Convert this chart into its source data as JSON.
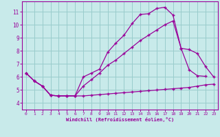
{
  "title": "",
  "xlabel": "Windchill (Refroidissement éolien,°C)",
  "background_color": "#c8eaea",
  "grid_color": "#99cccc",
  "line_color": "#990099",
  "xlim": [
    -0.5,
    23.5
  ],
  "ylim": [
    3.5,
    11.8
  ],
  "xticks": [
    0,
    1,
    2,
    3,
    4,
    5,
    6,
    7,
    8,
    9,
    10,
    11,
    12,
    13,
    14,
    15,
    16,
    17,
    18,
    19,
    20,
    21,
    22,
    23
  ],
  "yticks": [
    4,
    5,
    6,
    7,
    8,
    9,
    10,
    11
  ],
  "line1_x": [
    0,
    1,
    2,
    3,
    4,
    5,
    6,
    7,
    8,
    9,
    10,
    11,
    12,
    13,
    14,
    15,
    16,
    17,
    18,
    19,
    20,
    21,
    22,
    23
  ],
  "line1_y": [
    6.3,
    5.7,
    5.3,
    4.6,
    4.55,
    4.55,
    4.55,
    4.55,
    4.6,
    4.65,
    4.7,
    4.75,
    4.8,
    4.85,
    4.9,
    4.95,
    5.0,
    5.05,
    5.1,
    5.15,
    5.2,
    5.3,
    5.4,
    5.45
  ],
  "line2_x": [
    0,
    1,
    2,
    3,
    4,
    5,
    6,
    7,
    8,
    9,
    10,
    11,
    12,
    13,
    14,
    15,
    16,
    17,
    18,
    19,
    20,
    21,
    22
  ],
  "line2_y": [
    6.3,
    5.7,
    5.3,
    4.6,
    4.55,
    4.55,
    4.55,
    6.0,
    6.3,
    6.6,
    7.9,
    8.6,
    9.2,
    10.1,
    10.8,
    10.85,
    11.25,
    11.35,
    10.75,
    8.2,
    6.55,
    6.1,
    6.05
  ],
  "line3_x": [
    0,
    1,
    2,
    3,
    4,
    5,
    6,
    7,
    8,
    9,
    10,
    11,
    12,
    13,
    14,
    15,
    16,
    17,
    18,
    19,
    20,
    21,
    22,
    23
  ],
  "line3_y": [
    6.3,
    5.7,
    5.3,
    4.6,
    4.55,
    4.55,
    4.55,
    5.3,
    5.8,
    6.3,
    6.9,
    7.3,
    7.8,
    8.3,
    8.8,
    9.2,
    9.6,
    10.0,
    10.3,
    8.2,
    8.1,
    7.8,
    6.8,
    6.0
  ]
}
